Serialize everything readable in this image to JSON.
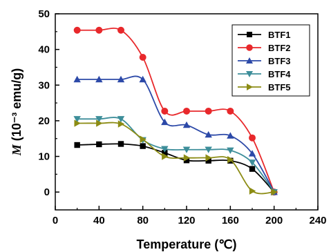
{
  "chart_data": {
    "type": "line",
    "title": "",
    "xlabel": "Temperature (℃)",
    "ylabel": "M (10⁻³ emu/g)",
    "ylabel_italic": "M",
    "ylabel_rest": " (10⁻³ emu/g)",
    "xlim": [
      0,
      240
    ],
    "ylim": [
      -5,
      50
    ],
    "xticks": [
      0,
      40,
      80,
      120,
      160,
      200,
      240
    ],
    "yticks": [
      0,
      10,
      20,
      30,
      40,
      50
    ],
    "grid": false,
    "legend_position": "top-right",
    "series": [
      {
        "name": "BTF1",
        "color": "#000000",
        "marker": "square",
        "x": [
          20,
          40,
          60,
          80,
          100,
          120,
          140,
          160,
          180,
          200
        ],
        "y": [
          13.2,
          13.4,
          13.5,
          12.9,
          11.0,
          8.9,
          8.8,
          8.8,
          6.5,
          0
        ]
      },
      {
        "name": "BTF2",
        "color": "#e8282b",
        "marker": "circle",
        "x": [
          20,
          40,
          60,
          80,
          100,
          120,
          140,
          160,
          180,
          200
        ],
        "y": [
          45.4,
          45.4,
          45.4,
          37.8,
          22.7,
          22.7,
          22.7,
          22.7,
          15.2,
          0
        ]
      },
      {
        "name": "BTF3",
        "color": "#2c49a8",
        "marker": "triangle-up",
        "x": [
          20,
          40,
          60,
          80,
          100,
          120,
          140,
          160,
          180,
          200
        ],
        "y": [
          31.6,
          31.6,
          31.6,
          31.6,
          19.6,
          18.8,
          16.1,
          15.8,
          10.8,
          0
        ]
      },
      {
        "name": "BTF4",
        "color": "#3d8e9a",
        "marker": "triangle-down",
        "x": [
          20,
          40,
          60,
          80,
          100,
          120,
          140,
          160,
          180,
          200
        ],
        "y": [
          20.5,
          20.5,
          20.5,
          14.6,
          12.1,
          11.9,
          11.9,
          11.7,
          8.3,
          0
        ]
      },
      {
        "name": "BTF5",
        "color": "#8c8c14",
        "marker": "triangle-right",
        "x": [
          20,
          40,
          60,
          80,
          100,
          120,
          140,
          160,
          180,
          200
        ],
        "y": [
          19.3,
          19.3,
          19.1,
          14.8,
          10.0,
          9.6,
          9.6,
          9.1,
          0.3,
          0
        ]
      }
    ]
  }
}
